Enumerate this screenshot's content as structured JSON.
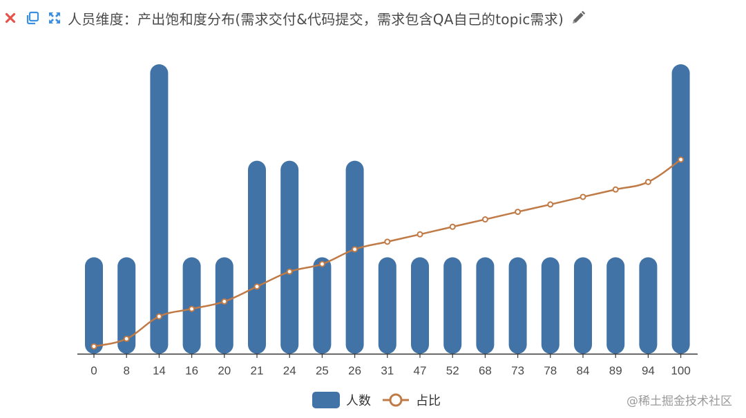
{
  "header": {
    "title": "人员维度：产出饱和度分布(需求交付&代码提交，需求包含QA自己的topic需求)",
    "icons": [
      "close-icon",
      "copy-icon",
      "expand-icon",
      "edit-pencil-icon"
    ]
  },
  "colors": {
    "bar": "#4173a6",
    "line": "#c07a45",
    "axis": "#333333",
    "close": "#e5534b",
    "toolbar": "#3b8fe0",
    "pencil": "#666666"
  },
  "legend": {
    "items": [
      {
        "label": "人数",
        "type": "bar"
      },
      {
        "label": "占比",
        "type": "line"
      }
    ]
  },
  "watermark": "@稀土掘金技术社区",
  "chart_data": {
    "type": "bar",
    "title": "人员维度：产出饱和度分布(需求交付&代码提交，需求包含QA自己的topic需求)",
    "xlabel": "",
    "ylabel": "",
    "categories": [
      "0",
      "8",
      "14",
      "16",
      "20",
      "21",
      "24",
      "25",
      "26",
      "31",
      "47",
      "52",
      "68",
      "73",
      "78",
      "84",
      "89",
      "94",
      "100"
    ],
    "series": [
      {
        "name": "人数",
        "type": "bar",
        "values": [
          1,
          1,
          3,
          1,
          1,
          2,
          2,
          1,
          2,
          1,
          1,
          1,
          1,
          1,
          1,
          1,
          1,
          1,
          3
        ]
      },
      {
        "name": "占比",
        "type": "line",
        "smooth": true,
        "unit": "%",
        "values": [
          3.8,
          7.7,
          19.2,
          23.1,
          26.9,
          34.6,
          42.3,
          46.2,
          53.8,
          57.7,
          61.5,
          65.4,
          69.2,
          73.1,
          76.9,
          80.8,
          84.6,
          88.5,
          100
        ]
      }
    ],
    "ylim": [
      0,
      3
    ],
    "y2lim": [
      0,
      100
    ],
    "grid": false,
    "legend_position": "bottom"
  }
}
